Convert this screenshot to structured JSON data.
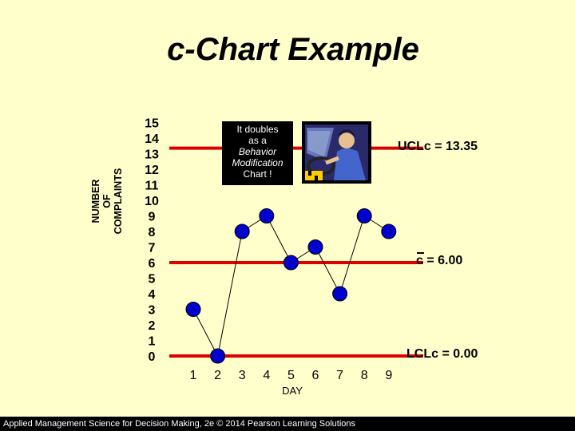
{
  "chart_data": {
    "type": "line",
    "title": "c-Chart Example",
    "ylabel_lines": [
      "NUMBER",
      "OF",
      "COMPLAINTS"
    ],
    "xlabel": "DAY",
    "x": [
      1,
      2,
      3,
      4,
      5,
      6,
      7,
      8,
      9
    ],
    "y_ticks": [
      15,
      14,
      13,
      12,
      11,
      10,
      9,
      8,
      7,
      6,
      5,
      4,
      3,
      2,
      1,
      0
    ],
    "xlim": [
      1,
      9
    ],
    "ylim": [
      0,
      15
    ],
    "values": [
      3,
      0,
      8,
      9,
      6,
      7,
      4,
      9,
      8
    ],
    "series_color": "#0000cc",
    "control_lines": [
      {
        "name": "UCLc",
        "value": 13.35,
        "label": "UCLc = 13.35"
      },
      {
        "name": "c-bar",
        "value": 6.0,
        "label": "c = 6.00"
      },
      {
        "name": "LCLc",
        "value": 0.0,
        "label": "LCLc = 0.00"
      }
    ],
    "control_line_color": "#dd0000",
    "grid": false
  },
  "callout": {
    "lines": [
      "It doubles",
      "as a",
      "Behavior",
      "Modification",
      "Chart !"
    ]
  },
  "footer": {
    "text": "Applied Management Science for Decision Making, 2e © 2014 Pearson Learning Solutions"
  }
}
